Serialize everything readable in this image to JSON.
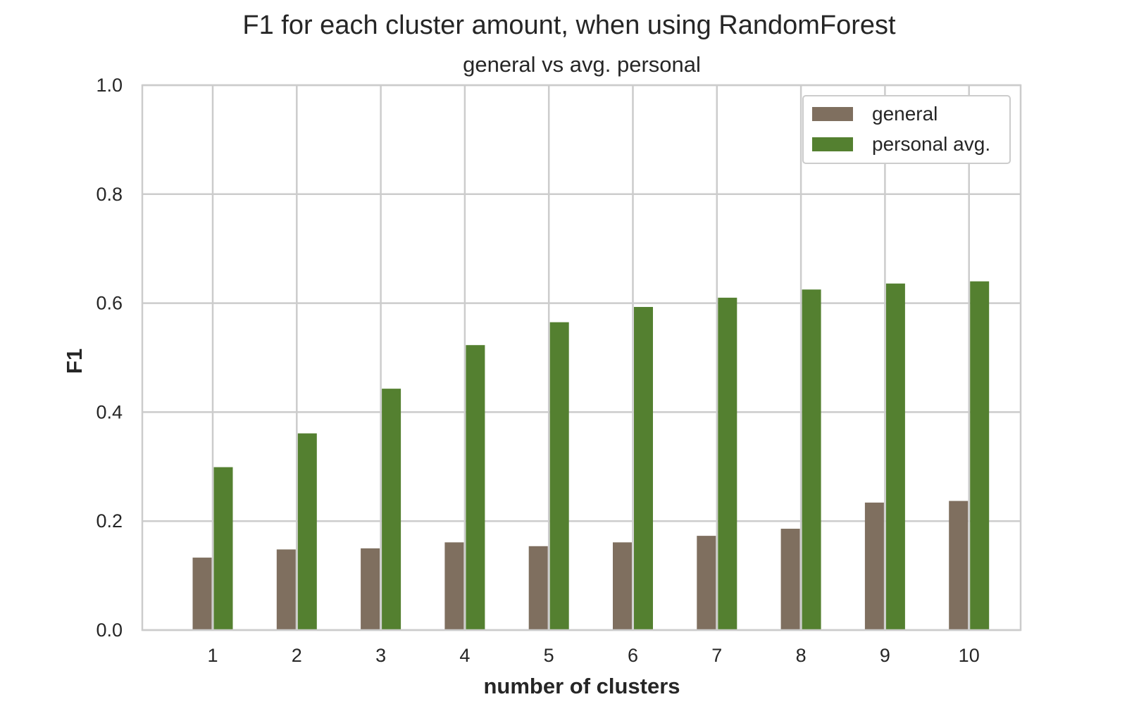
{
  "chart_data": {
    "type": "bar",
    "title": "F1 for each cluster amount, when using RandomForest",
    "subtitle": "general vs avg. personal",
    "xlabel": "number of clusters",
    "ylabel": "F1",
    "categories": [
      "1",
      "2",
      "3",
      "4",
      "5",
      "6",
      "7",
      "8",
      "9",
      "10"
    ],
    "series": [
      {
        "name": "general",
        "color": "#7f6f5f",
        "values": [
          0.133,
          0.148,
          0.15,
          0.161,
          0.154,
          0.161,
          0.173,
          0.186,
          0.234,
          0.237
        ]
      },
      {
        "name": "personal avg.",
        "color": "#548030",
        "values": [
          0.299,
          0.361,
          0.443,
          0.523,
          0.565,
          0.593,
          0.61,
          0.625,
          0.636,
          0.64
        ]
      }
    ],
    "ylim": [
      0,
      1.0
    ],
    "yticks": [
      "0.0",
      "0.2",
      "0.4",
      "0.6",
      "0.8",
      "1.0"
    ],
    "grid": true,
    "legend_position": "top-right"
  }
}
